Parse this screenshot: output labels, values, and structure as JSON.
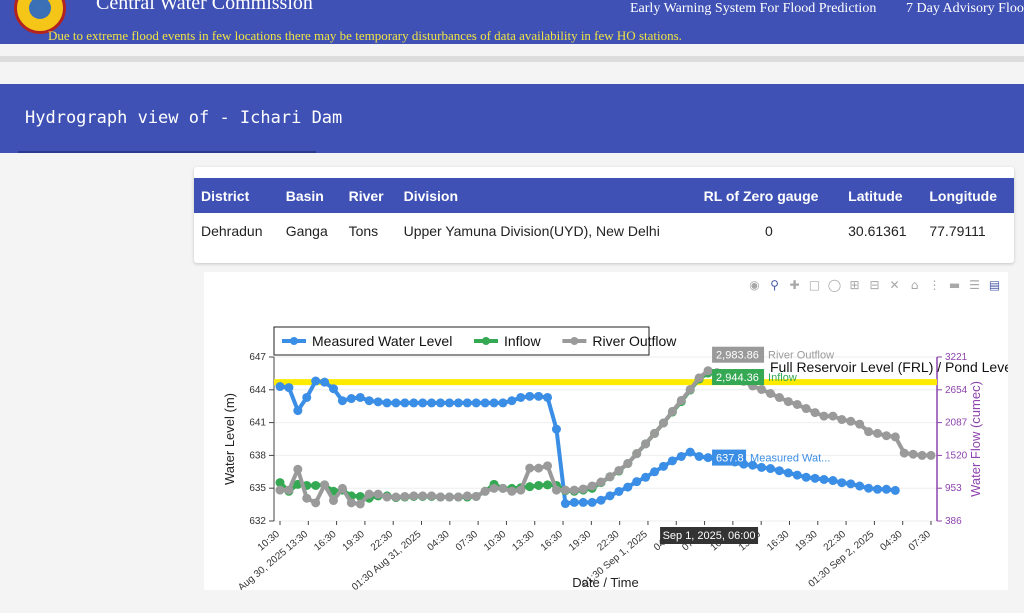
{
  "header": {
    "brand": "Central Water Commission",
    "nav_links": [
      "Early Warning System For Flood Prediction",
      "7 Day Advisory Floo"
    ],
    "ticker": "Due to extreme flood events in few locations there may be temporary disturbances of data availability in few HO stations."
  },
  "page": {
    "title": "Hydrograph view of - Ichari Dam"
  },
  "site_table": {
    "columns": [
      "District",
      "Basin",
      "River",
      "Division",
      "RL of Zero gauge",
      "Latitude",
      "Longitude"
    ],
    "row": [
      "Dehradun",
      "Ganga",
      "Tons",
      "Upper Yamuna Division(UYD), New Delhi",
      "0",
      "30.61361",
      "77.79111"
    ]
  },
  "modebar": {
    "icons": [
      "camera-icon",
      "zoom-icon",
      "pan-icon",
      "box-select-icon",
      "lasso-icon",
      "zoom-in-icon",
      "zoom-out-icon",
      "autoscale-icon",
      "reset-axes-icon",
      "spike-lines-icon",
      "hover-closest-icon",
      "hover-compare-icon",
      "plotly-logo-icon"
    ]
  },
  "chart_data": {
    "type": "line",
    "xlabel": "Date / Time",
    "ylabel": "Water Level (m)",
    "y2label": "Water Flow (cumec)",
    "ylim": [
      632,
      647
    ],
    "y_ticks": [
      "632",
      "635",
      "638",
      "641",
      "644",
      "647"
    ],
    "y2lim": [
      386,
      3221
    ],
    "y2_ticks": [
      "386",
      "953",
      "1520",
      "2087",
      "2654",
      "3221"
    ],
    "x_tick_labels": [
      "10:30",
      "Aug 30, 2025 13:30",
      "16:30",
      "19:30",
      "22:30",
      "01:30 Aug 31, 2025",
      "04:30",
      "07:30",
      "10:30",
      "13:30",
      "16:30",
      "19:30",
      "22:30",
      "01:30 Sep 1, 2025",
      "04:30",
      "07:30",
      "10:30",
      "13:30",
      "16:30",
      "19:30",
      "22:30",
      "01:30 Sep 2, 2025",
      "04:30",
      "07:30"
    ],
    "legend": [
      "Measured Water Level",
      "Inflow",
      "River Outflow"
    ],
    "legend_position": "top-left",
    "frl": {
      "label": "Full Reservoir Level (FRL) / Pond Level (PL",
      "value": 644.7
    },
    "series": [
      {
        "name": "Measured Water Level",
        "color": "#3b8ee6",
        "axis": "y",
        "values": [
          644.3,
          644.2,
          642.1,
          643.3,
          644.8,
          644.7,
          644.1,
          643.0,
          643.2,
          643.3,
          643.0,
          642.9,
          642.8,
          642.8,
          642.8,
          642.8,
          642.8,
          642.8,
          642.8,
          642.8,
          642.8,
          642.8,
          642.8,
          642.8,
          642.8,
          642.8,
          643.0,
          643.3,
          643.4,
          643.4,
          643.3,
          640.4,
          633.6,
          633.7,
          633.7,
          633.7,
          633.9,
          634.3,
          634.7,
          635.1,
          635.6,
          636.0,
          636.5,
          637.0,
          637.5,
          637.9,
          638.3,
          637.9,
          637.8,
          637.6,
          637.5,
          637.4,
          637.2,
          637.1,
          636.9,
          636.8,
          636.6,
          636.4,
          636.2,
          636.0,
          635.9,
          635.8,
          635.7,
          635.5,
          635.4,
          635.2,
          635.0,
          634.9,
          634.9,
          634.8
        ]
      },
      {
        "name": "Inflow",
        "color": "#34a853",
        "axis": "y2",
        "values": [
          1050,
          900,
          1020,
          1000,
          1000,
          1010,
          900,
          920,
          820,
          810,
          780,
          820,
          820,
          790,
          800,
          810,
          810,
          810,
          800,
          800,
          800,
          800,
          810,
          900,
          1020,
          950,
          950,
          960,
          980,
          1000,
          1010,
          1000,
          910,
          900,
          920,
          950,
          1050,
          1150,
          1250,
          1380,
          1550,
          1720,
          1900,
          2080,
          2270,
          2450,
          2650,
          2840,
          2944
        ]
      },
      {
        "name": "River Outflow",
        "color": "#9a9a9a",
        "axis": "y2",
        "values": [
          920,
          920,
          1280,
          780,
          700,
          1010,
          740,
          950,
          700,
          680,
          850,
          850,
          800,
          800,
          810,
          820,
          820,
          820,
          800,
          800,
          800,
          820,
          810,
          900,
          950,
          950,
          900,
          920,
          1300,
          1300,
          1340,
          920,
          920,
          920,
          940,
          990,
          1060,
          1150,
          1260,
          1380,
          1550,
          1720,
          1900,
          2080,
          2280,
          2470,
          2660,
          2860,
          2984,
          2950,
          2900,
          2860,
          2800,
          2720,
          2660,
          2590,
          2520,
          2450,
          2400,
          2330,
          2260,
          2200,
          2200,
          2140,
          2110,
          2060,
          1930,
          1900,
          1860,
          1840,
          1560,
          1540,
          1520,
          1520
        ]
      }
    ],
    "hover": {
      "time_label": "Sep 1, 2025, 06:00",
      "outflow_value": "2,983.86",
      "outflow_name": "River Outflow",
      "inflow_value": "2,944.36",
      "inflow_name": "Inflow",
      "level_value": "637.8",
      "level_name": "Measured Wat..."
    }
  }
}
